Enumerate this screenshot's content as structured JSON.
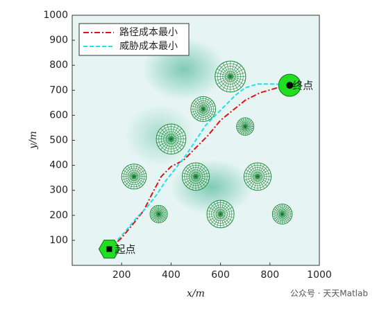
{
  "chart_data": {
    "type": "path-map",
    "xlabel": "x/m",
    "ylabel": "y/m",
    "xlim": [
      0,
      1000
    ],
    "ylim": [
      0,
      1000
    ],
    "xticks": [
      200,
      400,
      600,
      800,
      1000
    ],
    "yticks": [
      100,
      200,
      300,
      400,
      500,
      600,
      700,
      800,
      900,
      1000
    ],
    "series": [
      {
        "name": "路径成本最小",
        "color": "#e01010",
        "x": [
          150,
          200,
          250,
          290,
          320,
          360,
          400,
          450,
          500,
          550,
          600,
          650,
          700,
          760,
          830,
          880
        ],
        "values": [
          65,
          110,
          170,
          220,
          280,
          355,
          395,
          420,
          470,
          520,
          580,
          620,
          660,
          690,
          710,
          720
        ]
      },
      {
        "name": "威胁成本最小",
        "color": "#1ee0e8",
        "x": [
          150,
          210,
          260,
          300,
          340,
          380,
          420,
          460,
          500,
          540,
          580,
          620,
          660,
          700,
          750,
          820,
          880
        ],
        "values": [
          65,
          130,
          190,
          230,
          280,
          340,
          390,
          440,
          500,
          560,
          600,
          640,
          680,
          710,
          725,
          725,
          720
        ]
      }
    ],
    "obstacles": [
      {
        "x": 640,
        "y": 755,
        "r": 62
      },
      {
        "x": 530,
        "y": 625,
        "r": 50
      },
      {
        "x": 700,
        "y": 555,
        "r": 35
      },
      {
        "x": 400,
        "y": 505,
        "r": 60
      },
      {
        "x": 250,
        "y": 355,
        "r": 50
      },
      {
        "x": 500,
        "y": 355,
        "r": 55
      },
      {
        "x": 750,
        "y": 355,
        "r": 55
      },
      {
        "x": 350,
        "y": 205,
        "r": 35
      },
      {
        "x": 600,
        "y": 205,
        "r": 55
      },
      {
        "x": 850,
        "y": 205,
        "r": 40
      }
    ],
    "start": {
      "label": "起点",
      "x": 150,
      "y": 65
    },
    "goal": {
      "label": "终点",
      "x": 880,
      "y": 720
    },
    "watermark": "公众号 · 天天Matlab"
  }
}
